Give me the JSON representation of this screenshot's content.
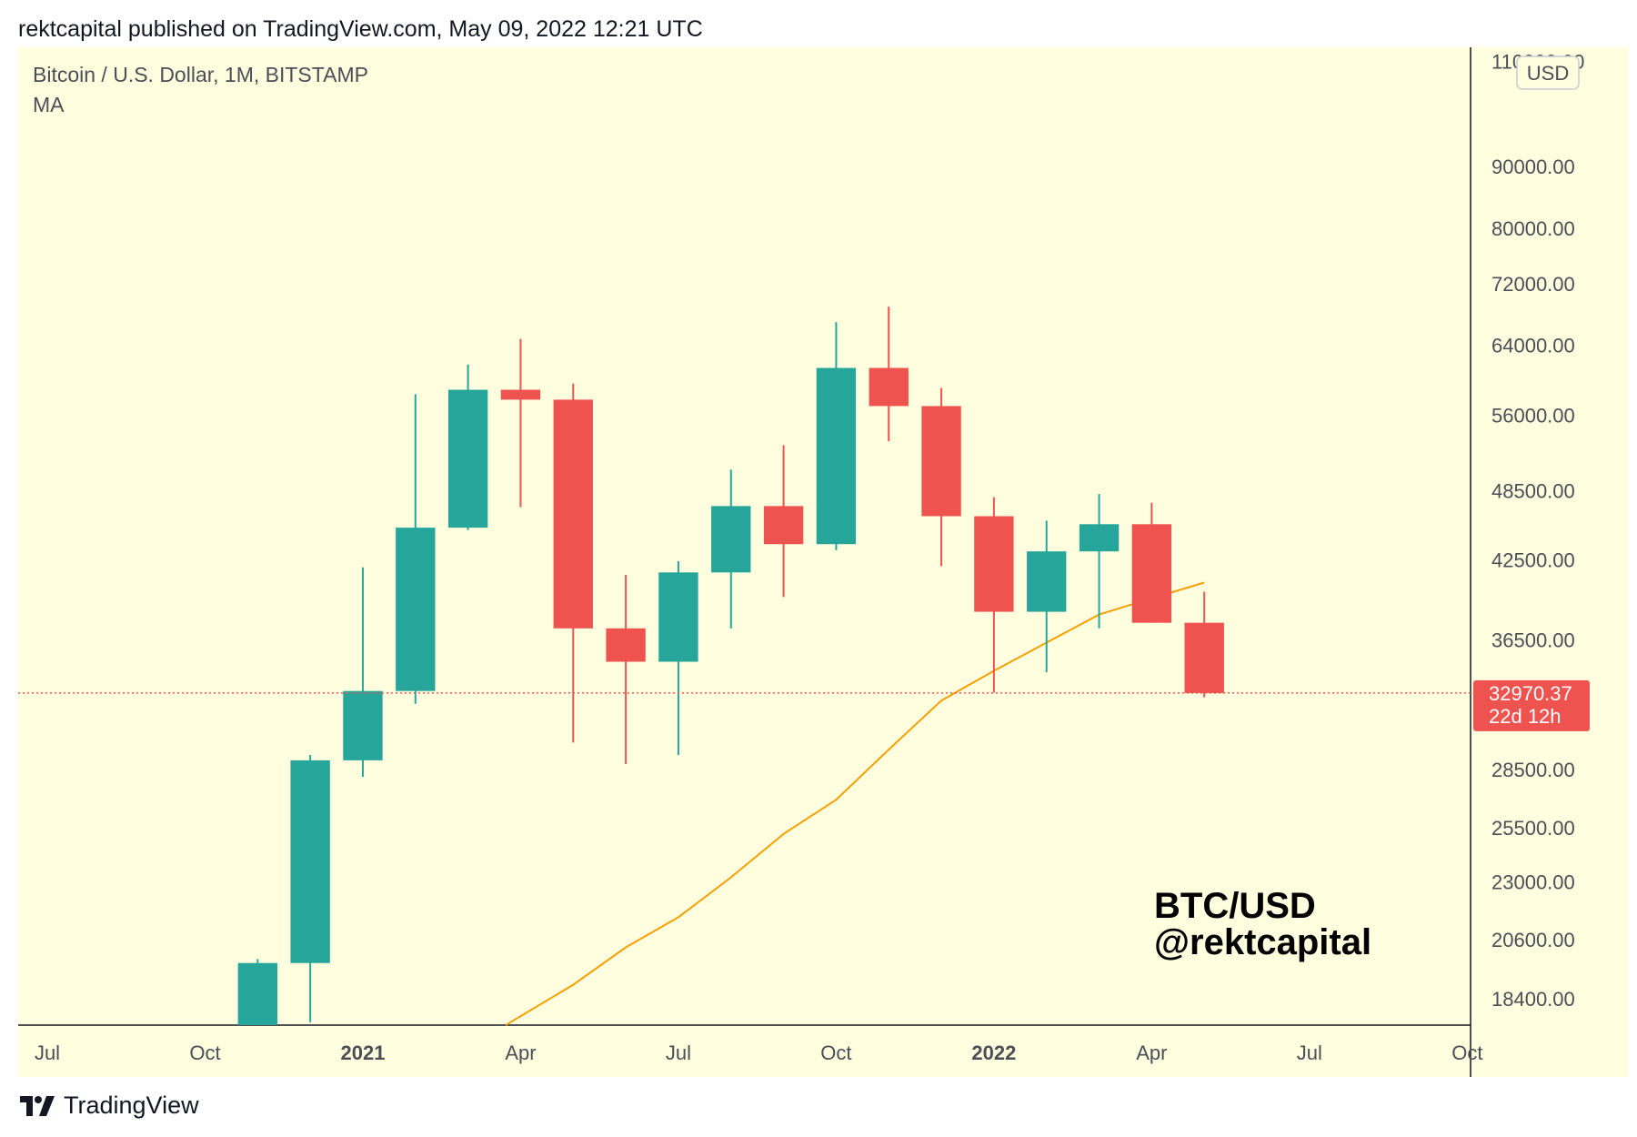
{
  "header": {
    "published_by": "rektcapital published on TradingView.com, May 09, 2022 12:21 UTC"
  },
  "footer": {
    "brand": "TradingView"
  },
  "colors": {
    "background": "#ffffe0",
    "up": "#26a69a",
    "down": "#ef5350",
    "ma": "#f5a000",
    "price_label": "#ef5350"
  },
  "chart_data": {
    "type": "candlestick",
    "symbol_info": "Bitcoin / U.S. Dollar, 1M, BITSTAMP",
    "indicator_label": "MA",
    "currency_badge": "USD",
    "watermark_line1": "BTC/USD",
    "watermark_line2": "@rektcapital",
    "y_scale": "log",
    "ylim": [
      17500,
      113000
    ],
    "y_ticks": [
      "110000.00",
      "90000.00",
      "80000.00",
      "72000.00",
      "64000.00",
      "56000.00",
      "48500.00",
      "42500.00",
      "36500.00",
      "28500.00",
      "25500.00",
      "23000.00",
      "20600.00",
      "18400.00"
    ],
    "x_ticks": [
      {
        "label": "Jul",
        "month": "2020-07",
        "bold": false
      },
      {
        "label": "Oct",
        "month": "2020-10",
        "bold": false
      },
      {
        "label": "2021",
        "month": "2021-01",
        "bold": true
      },
      {
        "label": "Apr",
        "month": "2021-04",
        "bold": false
      },
      {
        "label": "Jul",
        "month": "2021-07",
        "bold": false
      },
      {
        "label": "Oct",
        "month": "2021-10",
        "bold": false
      },
      {
        "label": "2022",
        "month": "2022-01",
        "bold": true
      },
      {
        "label": "Apr",
        "month": "2022-04",
        "bold": false
      },
      {
        "label": "Jul",
        "month": "2022-07",
        "bold": false
      },
      {
        "label": "Oct",
        "month": "2022-10",
        "bold": false
      }
    ],
    "xlim": [
      "2020-06",
      "2022-10"
    ],
    "candles": [
      {
        "month": "2020-11",
        "open": 13800,
        "high": 19850,
        "low": 13200,
        "close": 19700
      },
      {
        "month": "2020-12",
        "open": 19700,
        "high": 29300,
        "low": 17600,
        "close": 29000
      },
      {
        "month": "2021-01",
        "open": 29000,
        "high": 41900,
        "low": 28100,
        "close": 33100
      },
      {
        "month": "2021-02",
        "open": 33100,
        "high": 58300,
        "low": 32300,
        "close": 45200
      },
      {
        "month": "2021-03",
        "open": 45200,
        "high": 61700,
        "low": 45000,
        "close": 58800
      },
      {
        "month": "2021-04",
        "open": 58800,
        "high": 64800,
        "low": 47000,
        "close": 57700
      },
      {
        "month": "2021-05",
        "open": 57700,
        "high": 59500,
        "low": 30000,
        "close": 37300
      },
      {
        "month": "2021-06",
        "open": 37300,
        "high": 41300,
        "low": 28800,
        "close": 35000
      },
      {
        "month": "2021-07",
        "open": 35000,
        "high": 42400,
        "low": 29300,
        "close": 41500
      },
      {
        "month": "2021-08",
        "open": 41500,
        "high": 50500,
        "low": 37300,
        "close": 47100
      },
      {
        "month": "2021-09",
        "open": 47100,
        "high": 52900,
        "low": 39600,
        "close": 43800
      },
      {
        "month": "2021-10",
        "open": 43800,
        "high": 66900,
        "low": 43300,
        "close": 61300
      },
      {
        "month": "2021-11",
        "open": 61300,
        "high": 68900,
        "low": 53300,
        "close": 57000
      },
      {
        "month": "2021-12",
        "open": 57000,
        "high": 59000,
        "low": 42000,
        "close": 46200
      },
      {
        "month": "2022-01",
        "open": 46200,
        "high": 47900,
        "low": 33000,
        "close": 38500
      },
      {
        "month": "2022-02",
        "open": 38500,
        "high": 45800,
        "low": 34300,
        "close": 43200
      },
      {
        "month": "2022-03",
        "open": 43200,
        "high": 48200,
        "low": 37300,
        "close": 45500
      },
      {
        "month": "2022-04",
        "open": 45500,
        "high": 47400,
        "low": 37700,
        "close": 37700
      },
      {
        "month": "2022-05",
        "open": 37700,
        "high": 40000,
        "low": 32700,
        "close": 32970.37
      }
    ],
    "ma": [
      {
        "month": "2021-04",
        "value": 17800
      },
      {
        "month": "2021-05",
        "value": 18900
      },
      {
        "month": "2021-06",
        "value": 20300
      },
      {
        "month": "2021-07",
        "value": 21500
      },
      {
        "month": "2021-08",
        "value": 23200
      },
      {
        "month": "2021-09",
        "value": 25200
      },
      {
        "month": "2021-10",
        "value": 26900
      },
      {
        "month": "2021-11",
        "value": 29600
      },
      {
        "month": "2021-12",
        "value": 32500
      },
      {
        "month": "2022-01",
        "value": 34400
      },
      {
        "month": "2022-02",
        "value": 36300
      },
      {
        "month": "2022-03",
        "value": 38300
      },
      {
        "month": "2022-04",
        "value": 39500
      },
      {
        "month": "2022-05",
        "value": 40700
      }
    ],
    "last_price": 32970.37,
    "last_price_label": "32970.37",
    "countdown_label": "22d 12h"
  }
}
